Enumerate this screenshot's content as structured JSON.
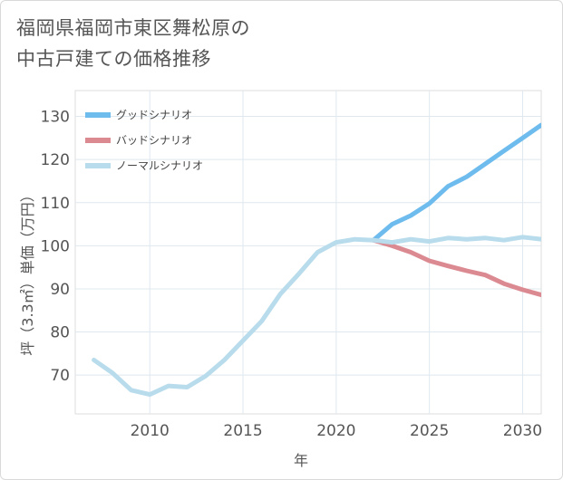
{
  "chart_data": {
    "type": "line",
    "title_line1": "福岡県福岡市東区舞松原の",
    "title_line2": "中古戸建ての価格推移",
    "xlabel": "年",
    "ylabel": "坪（3.3㎡）単価（万円）",
    "xlim": [
      2006,
      2031
    ],
    "ylim": [
      61,
      136
    ],
    "x_ticks": [
      2010,
      2015,
      2020,
      2025,
      2030
    ],
    "y_ticks": [
      70,
      80,
      90,
      100,
      110,
      120,
      130
    ],
    "grid": true,
    "legend_position": "top-left",
    "series": [
      {
        "name": "グッドシナリオ",
        "color": "#6ebbee",
        "x": [
          2022,
          2023,
          2024,
          2025,
          2026,
          2027,
          2028,
          2029,
          2030,
          2031
        ],
        "y": [
          101.3,
          105.0,
          107.0,
          109.8,
          113.8,
          116.0,
          119.0,
          122.0,
          125.0,
          128.0
        ]
      },
      {
        "name": "バッドシナリオ",
        "color": "#dc8a92",
        "x": [
          2022,
          2023,
          2024,
          2025,
          2026,
          2027,
          2028,
          2029,
          2030,
          2031
        ],
        "y": [
          101.3,
          100.0,
          98.5,
          96.5,
          95.3,
          94.2,
          93.2,
          91.2,
          89.8,
          88.6
        ]
      },
      {
        "name": "ノーマルシナリオ",
        "color": "#b8dcec",
        "x": [
          2007,
          2008,
          2009,
          2010,
          2011,
          2012,
          2013,
          2014,
          2015,
          2016,
          2017,
          2018,
          2019,
          2020,
          2021,
          2022,
          2023,
          2024,
          2025,
          2026,
          2027,
          2028,
          2029,
          2030,
          2031
        ],
        "y": [
          73.5,
          70.5,
          66.5,
          65.5,
          67.5,
          67.2,
          69.8,
          73.5,
          78.0,
          82.5,
          88.8,
          93.5,
          98.5,
          100.8,
          101.5,
          101.3,
          100.8,
          101.5,
          101.0,
          101.8,
          101.5,
          101.8,
          101.3,
          102.0,
          101.5
        ]
      }
    ]
  }
}
